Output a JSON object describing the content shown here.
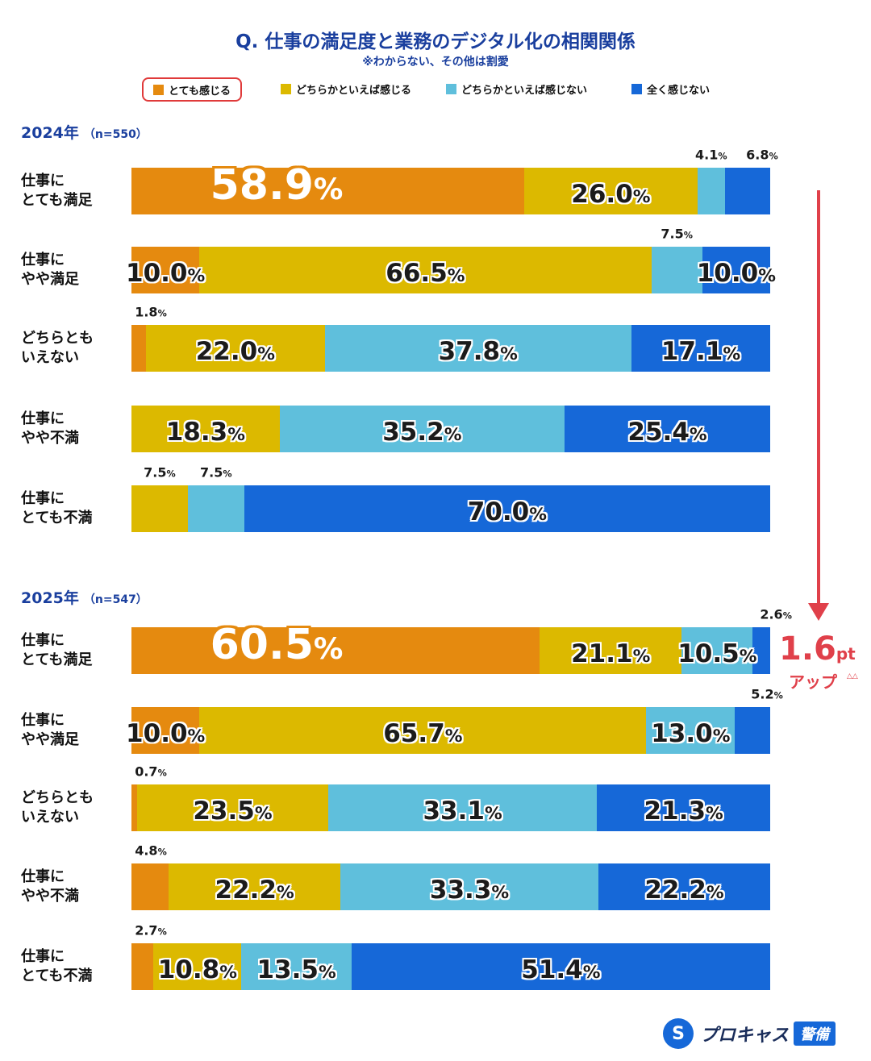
{
  "title": "Q. 仕事の満足度と業務のデジタル化の相関関係",
  "subtitle": "※わからない、その他は割愛",
  "legend": [
    {
      "label": "とても感じる",
      "color": "#e58a0f"
    },
    {
      "label": "どちらかといえば感じる",
      "color": "#dcb900"
    },
    {
      "label": "どちらかといえば感じない",
      "color": "#5fbfdc"
    },
    {
      "label": "全く感じない",
      "color": "#1668d8"
    }
  ],
  "chart_data": [
    {
      "type": "bar",
      "stacked": true,
      "orientation": "horizontal",
      "title": "2024年",
      "sample": "（n=550）",
      "unit": "%",
      "categories": [
        [
          "仕事に",
          "とても満足"
        ],
        [
          "仕事に",
          "やや満足"
        ],
        [
          "どちらとも",
          "いえない"
        ],
        [
          "仕事に",
          "やや不満"
        ],
        [
          "仕事に",
          "とても不満"
        ]
      ],
      "series": [
        {
          "name": "とても感じる",
          "values": [
            58.9,
            10.0,
            1.8,
            0,
            0
          ]
        },
        {
          "name": "どちらかといえば感じる",
          "values": [
            26.0,
            66.5,
            22.0,
            18.3,
            7.5
          ]
        },
        {
          "name": "どちらかといえば感じない",
          "values": [
            4.1,
            7.5,
            37.8,
            35.2,
            7.5
          ]
        },
        {
          "name": "全く感じない",
          "values": [
            6.8,
            10.0,
            17.1,
            25.4,
            70.0
          ]
        }
      ]
    },
    {
      "type": "bar",
      "stacked": true,
      "orientation": "horizontal",
      "title": "2025年",
      "sample": "（n=547）",
      "unit": "%",
      "categories": [
        [
          "仕事に",
          "とても満足"
        ],
        [
          "仕事に",
          "やや満足"
        ],
        [
          "どちらとも",
          "いえない"
        ],
        [
          "仕事に",
          "やや不満"
        ],
        [
          "仕事に",
          "とても不満"
        ]
      ],
      "series": [
        {
          "name": "とても感じる",
          "values": [
            60.5,
            10.0,
            0.7,
            4.8,
            2.7
          ]
        },
        {
          "name": "どちらかといえば感じる",
          "values": [
            21.1,
            65.7,
            23.5,
            22.2,
            10.8
          ]
        },
        {
          "name": "どちらかといえば感じない",
          "values": [
            10.5,
            13.0,
            33.1,
            33.3,
            13.5
          ]
        },
        {
          "name": "全く感じない",
          "values": [
            2.6,
            5.2,
            21.3,
            22.2,
            51.4
          ]
        }
      ]
    }
  ],
  "annotation": {
    "value": "1.6",
    "unit": "pt",
    "text": "アップ",
    "marks": "△△"
  },
  "logo": {
    "name": "プロキャス",
    "badge": "警備",
    "mark": "S"
  }
}
